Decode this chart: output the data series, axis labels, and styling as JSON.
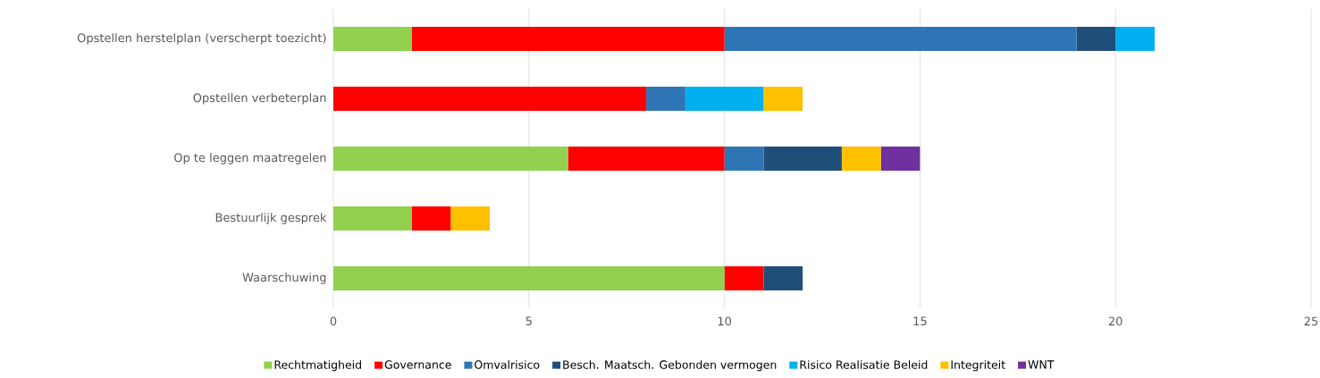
{
  "chart_data": {
    "type": "bar",
    "orientation": "horizontal",
    "stacked": true,
    "categories": [
      "Opstellen herstelplan (verscherpt toezicht)",
      "Opstellen verbeterplan",
      "Op te leggen maatregelen",
      "Bestuurlijk gesprek",
      "Waarschuwing"
    ],
    "series": [
      {
        "name": "Rechtmatigheid",
        "color": "#92d050",
        "values": [
          2,
          0,
          6,
          2,
          10
        ]
      },
      {
        "name": "Governance",
        "color": "#ff0000",
        "values": [
          8,
          8,
          4,
          1,
          1
        ]
      },
      {
        "name": "Omvalrisico",
        "color": "#2e75b6",
        "values": [
          9,
          1,
          1,
          0,
          0
        ]
      },
      {
        "name": "Besch. Maatsch. Gebonden vermogen",
        "color": "#1f4e79",
        "values": [
          1,
          0,
          2,
          0,
          1
        ]
      },
      {
        "name": "Risico Realisatie Beleid",
        "color": "#00b0f0",
        "values": [
          1,
          2,
          0,
          0,
          0
        ]
      },
      {
        "name": "Integriteit",
        "color": "#ffc000",
        "values": [
          0,
          1,
          1,
          1,
          0
        ]
      },
      {
        "name": "WNT",
        "color": "#7030a0",
        "values": [
          0,
          0,
          1,
          0,
          0
        ]
      }
    ],
    "xlim": [
      0,
      25
    ],
    "xticks": [
      0,
      5,
      10,
      15,
      20,
      25
    ],
    "grid": "x",
    "legend": "bottom"
  }
}
